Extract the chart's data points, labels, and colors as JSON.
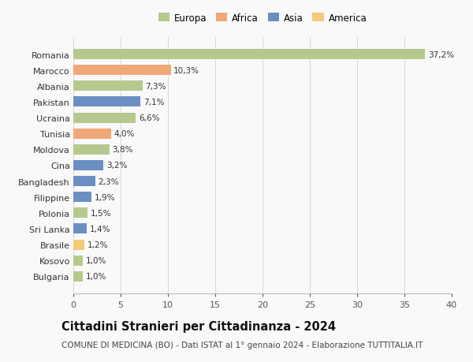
{
  "categories": [
    "Bulgaria",
    "Kosovo",
    "Brasile",
    "Sri Lanka",
    "Polonia",
    "Filippine",
    "Bangladesh",
    "Cina",
    "Moldova",
    "Tunisia",
    "Ucraina",
    "Pakistan",
    "Albania",
    "Marocco",
    "Romania"
  ],
  "values": [
    1.0,
    1.0,
    1.2,
    1.4,
    1.5,
    1.9,
    2.3,
    3.2,
    3.8,
    4.0,
    6.6,
    7.1,
    7.3,
    10.3,
    37.2
  ],
  "labels": [
    "1,0%",
    "1,0%",
    "1,2%",
    "1,4%",
    "1,5%",
    "1,9%",
    "2,3%",
    "3,2%",
    "3,8%",
    "4,0%",
    "6,6%",
    "7,1%",
    "7,3%",
    "10,3%",
    "37,2%"
  ],
  "colors": [
    "#b5c98e",
    "#b5c98e",
    "#f5c97a",
    "#6b8fc2",
    "#b5c98e",
    "#6b8fc2",
    "#6b8fc2",
    "#6b8fc2",
    "#b5c98e",
    "#f0a876",
    "#b5c98e",
    "#6b8fc2",
    "#b5c98e",
    "#f0a876",
    "#b5c98e"
  ],
  "legend_labels": [
    "Europa",
    "Africa",
    "Asia",
    "America"
  ],
  "legend_colors": [
    "#b5c98e",
    "#f0a876",
    "#6b8fc2",
    "#f5c97a"
  ],
  "title": "Cittadini Stranieri per Cittadinanza - 2024",
  "subtitle": "COMUNE DI MEDICINA (BO) - Dati ISTAT al 1° gennaio 2024 - Elaborazione TUTTITALIA.IT",
  "xlim": [
    0,
    40
  ],
  "xticks": [
    0,
    5,
    10,
    15,
    20,
    25,
    30,
    35,
    40
  ],
  "bg_color": "#f9f9f9",
  "bar_height": 0.65,
  "label_fontsize": 7.5,
  "title_fontsize": 10.5,
  "subtitle_fontsize": 7.5,
  "ytick_fontsize": 8,
  "xtick_fontsize": 8
}
